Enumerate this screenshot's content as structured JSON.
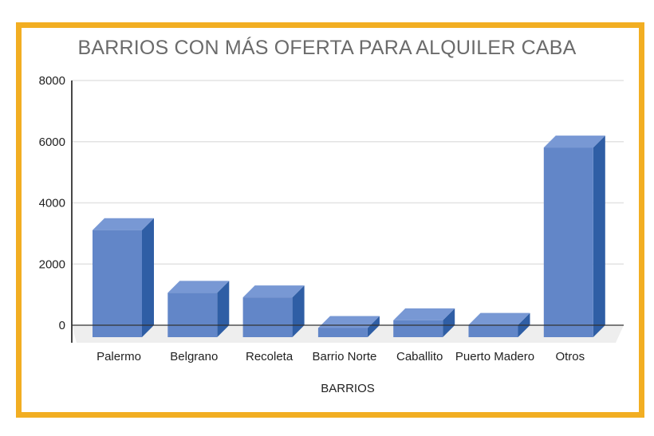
{
  "chart_data": {
    "type": "bar",
    "title": "BARRIOS CON MÁS OFERTA PARA ALQUILER CABA",
    "xlabel": "BARRIOS",
    "ylabel": "",
    "categories": [
      "Palermo",
      "Belgrano",
      "Recoleta",
      "Barrio Norte",
      "Caballito",
      "Puerto Madero",
      "Otros"
    ],
    "values": [
      3500,
      1450,
      1300,
      300,
      550,
      400,
      6200
    ],
    "ylim": [
      0,
      8000
    ],
    "yticks": [
      0,
      2000,
      4000,
      6000,
      8000
    ],
    "grid": true,
    "style": "3d-column"
  },
  "colors": {
    "frame": "#f2ae22",
    "bar_front": "#6286c8",
    "bar_top": "#7898d4",
    "bar_side": "#2f5ea5",
    "grid": "#e3e3e3",
    "floor": "#eeeeee",
    "axis": "#333333",
    "title": "#6b6b6b"
  }
}
